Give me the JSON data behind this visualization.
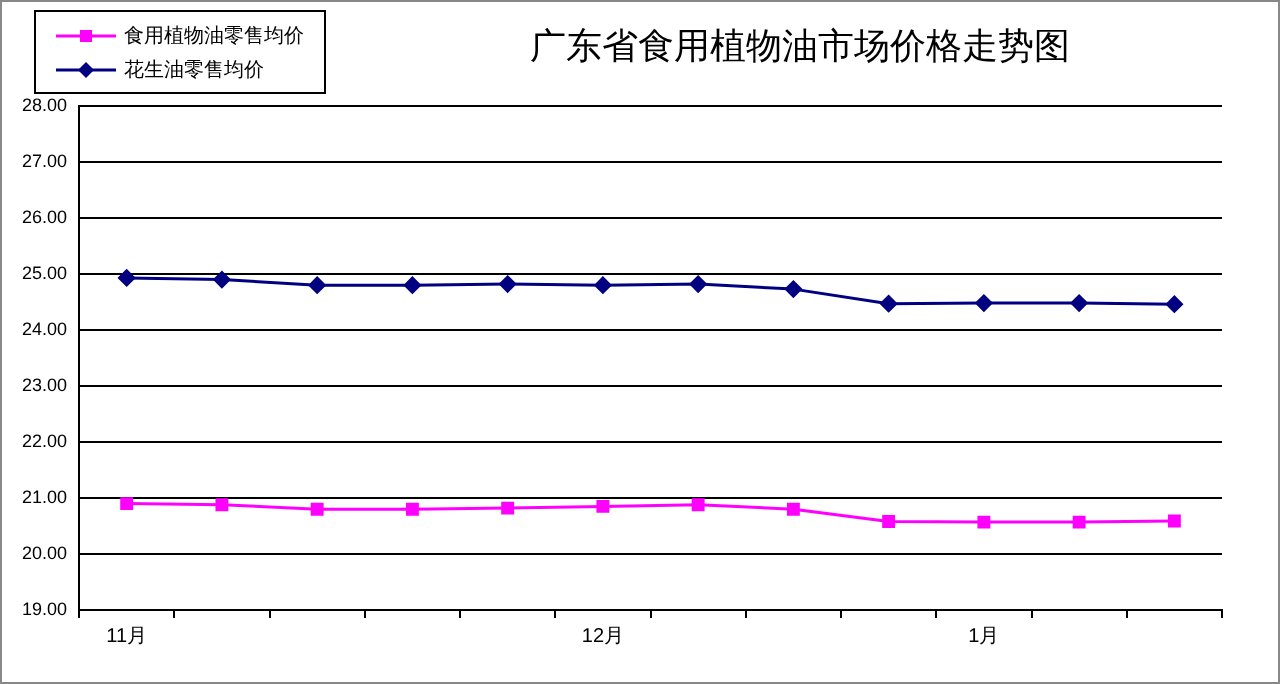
{
  "chart_data": {
    "type": "line",
    "title": "广东省食用植物油市场价格走势图",
    "categories": [
      "11月",
      null,
      null,
      null,
      null,
      "12月",
      null,
      null,
      null,
      "1月",
      null,
      null
    ],
    "series": [
      {
        "name": "食用植物油零售均价",
        "color": "#ff00ff",
        "marker": "square",
        "values": [
          20.9,
          20.88,
          20.8,
          20.8,
          20.82,
          20.85,
          20.88,
          20.8,
          20.58,
          20.57,
          20.57,
          20.59
        ]
      },
      {
        "name": "花生油零售均价",
        "color": "#000080",
        "marker": "diamond",
        "values": [
          24.93,
          24.9,
          24.8,
          24.8,
          24.82,
          24.8,
          24.82,
          24.73,
          24.47,
          24.48,
          24.48,
          24.46
        ]
      }
    ],
    "ylim": [
      19,
      28
    ],
    "yticks": [
      {
        "value": 19,
        "label": "19.00"
      },
      {
        "value": 20,
        "label": "20.00"
      },
      {
        "value": 21,
        "label": "21.00"
      },
      {
        "value": 22,
        "label": "22.00"
      },
      {
        "value": 23,
        "label": "23.00"
      },
      {
        "value": 24,
        "label": "24.00"
      },
      {
        "value": 25,
        "label": "25.00"
      },
      {
        "value": 26,
        "label": "26.00"
      },
      {
        "value": 27,
        "label": "27.00"
      },
      {
        "value": 28,
        "label": "28.00"
      }
    ],
    "grid": "y",
    "legend": "top left"
  }
}
